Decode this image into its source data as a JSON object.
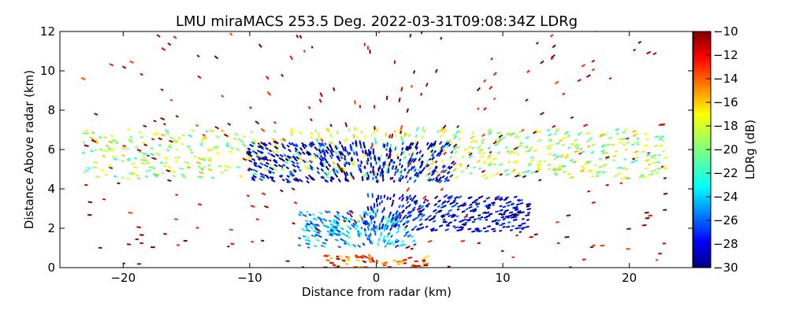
{
  "chart_data": {
    "type": "heatmap",
    "title": "LMU miraMACS 253.5 Deg. 2022-03-31T09:08:34Z  LDRg",
    "xlabel": "Distance from radar (km)",
    "ylabel": "Distance Above radar  (km)",
    "xlim": [
      -25,
      25
    ],
    "ylim": [
      0,
      12
    ],
    "x_ticks": [
      -20,
      -10,
      0,
      10,
      20
    ],
    "x_tick_labels": [
      "−20",
      "−10",
      "0",
      "10",
      "20"
    ],
    "y_ticks": [
      0,
      2,
      4,
      6,
      8,
      10,
      12
    ],
    "y_tick_labels": [
      "0",
      "2",
      "4",
      "6",
      "8",
      "10",
      "12"
    ],
    "colorbar": {
      "label": "LDRg (dB)",
      "range": [
        -30,
        -10
      ],
      "ticks": [
        -10,
        -12,
        -14,
        -16,
        -18,
        -20,
        -22,
        -24,
        -26,
        -28,
        -30
      ],
      "tick_labels": [
        "−10",
        "−12",
        "−14",
        "−16",
        "−18",
        "−20",
        "−22",
        "−24",
        "−26",
        "−28",
        "−30"
      ],
      "colormap": "jet"
    },
    "grid": false,
    "regions": [
      {
        "x": [
          -23,
          23
        ],
        "y": [
          4.5,
          7.0
        ],
        "ldr": -19
      },
      {
        "x": [
          -10,
          6
        ],
        "y": [
          4.3,
          6.3
        ],
        "ldr": -28
      },
      {
        "x": [
          -1,
          12
        ],
        "y": [
          1.8,
          3.6
        ],
        "ldr": -28
      },
      {
        "x": [
          -6,
          3
        ],
        "y": [
          1.0,
          2.8
        ],
        "ldr": -24
      },
      {
        "x": [
          -4,
          4
        ],
        "y": [
          0,
          0.6
        ],
        "ldr": -14
      },
      {
        "x": [
          -23,
          23
        ],
        "y": [
          0,
          12
        ],
        "ldr": -11
      }
    ]
  }
}
